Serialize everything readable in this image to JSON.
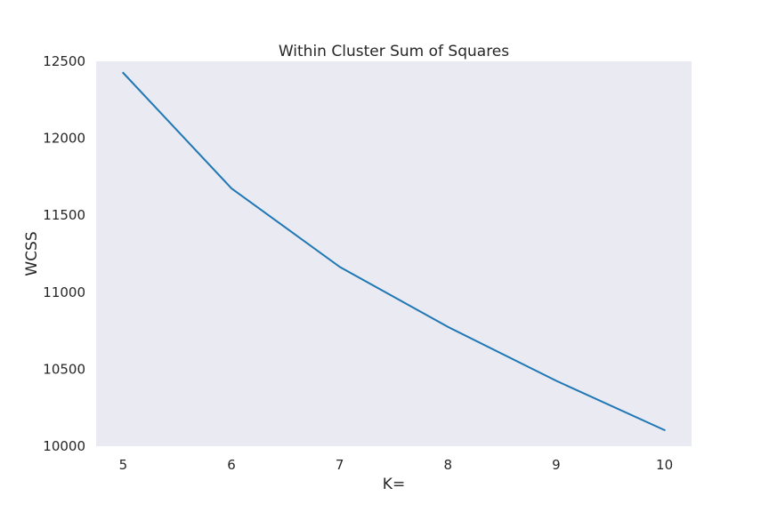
{
  "chart_data": {
    "type": "line",
    "title": "Within Cluster Sum of Squares",
    "xlabel": "K=",
    "ylabel": "WCSS",
    "x": [
      5,
      6,
      7,
      8,
      9,
      10
    ],
    "series": [
      {
        "values": [
          12425,
          11675,
          11165,
          10775,
          10425,
          10105
        ],
        "color": "#1f77b4"
      }
    ],
    "xlim": [
      4.75,
      10.25
    ],
    "ylim": [
      10000,
      12500
    ],
    "xticks": [
      5,
      6,
      7,
      8,
      9,
      10
    ],
    "xtick_labels": [
      "5",
      "6",
      "7",
      "8",
      "9",
      "10"
    ],
    "yticks": [
      10000,
      10500,
      11000,
      11500,
      12000,
      12500
    ],
    "ytick_labels": [
      "10000",
      "10500",
      "11000",
      "11500",
      "12000",
      "12500"
    ],
    "grid": false,
    "plot_background": "#eaeaf2",
    "figure_background": "#ffffff"
  }
}
